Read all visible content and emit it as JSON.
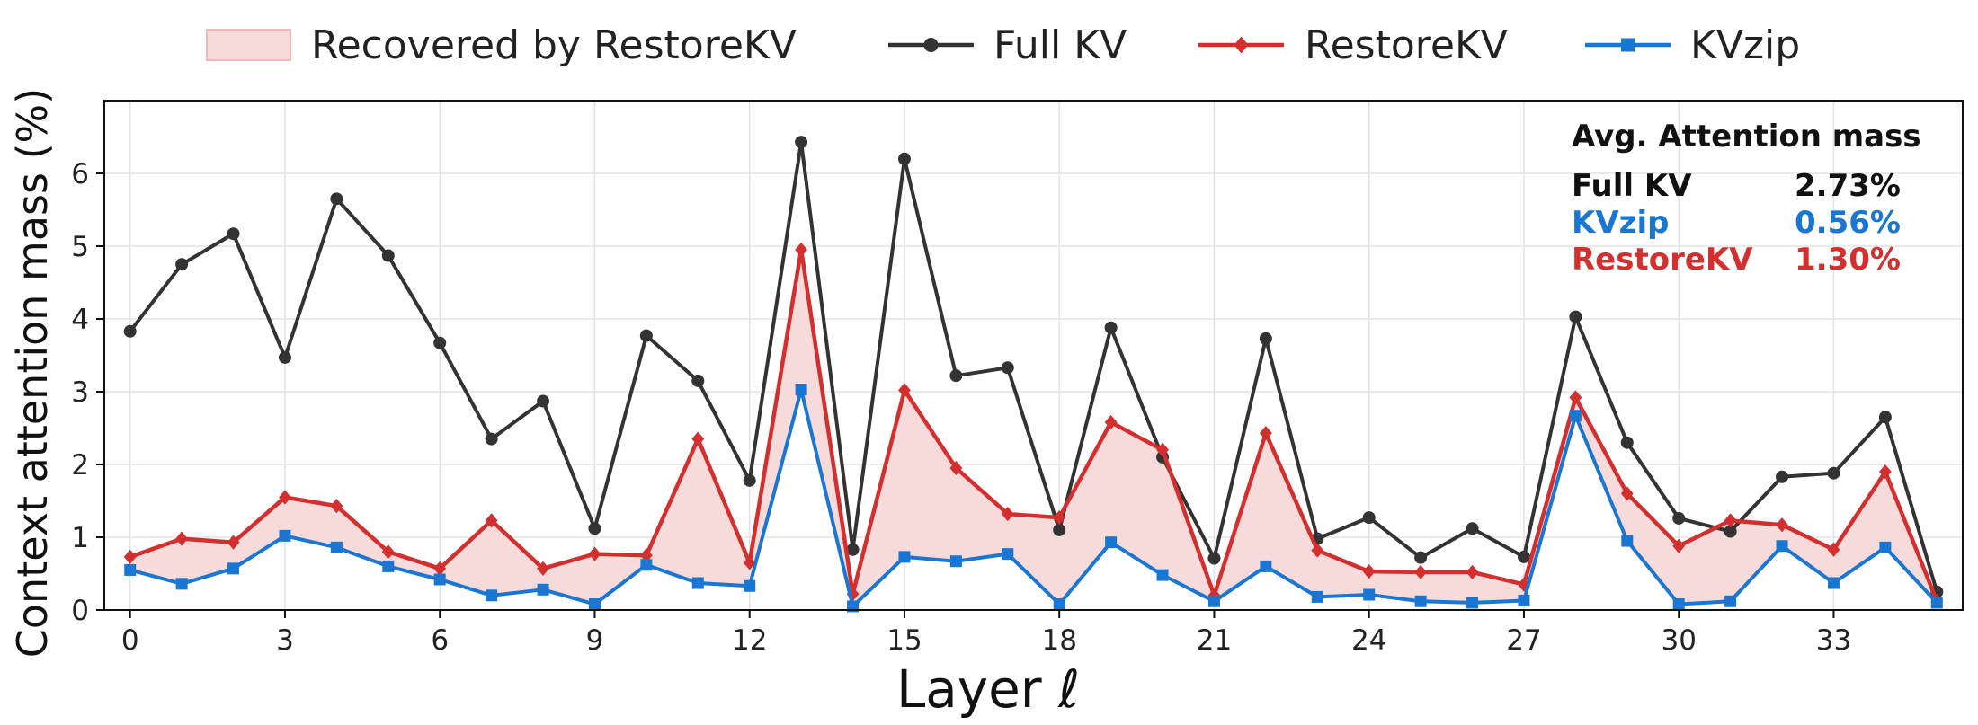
{
  "chart_data": {
    "type": "line",
    "xlabel": "Layer ℓ",
    "ylabel": "Context attention mass (%)",
    "xlim": [
      -0.5,
      35.5
    ],
    "ylim": [
      0,
      7
    ],
    "x_ticks": [
      0,
      3,
      6,
      9,
      12,
      15,
      18,
      21,
      24,
      27,
      30,
      33
    ],
    "y_ticks": [
      0,
      1,
      2,
      3,
      4,
      5,
      6
    ],
    "grid": true,
    "legend_placement": "top (above plot), horizontal",
    "x": [
      0,
      1,
      2,
      3,
      4,
      5,
      6,
      7,
      8,
      9,
      10,
      11,
      12,
      13,
      14,
      15,
      16,
      17,
      18,
      19,
      20,
      21,
      22,
      23,
      24,
      25,
      26,
      27,
      28,
      29,
      30,
      31,
      32,
      33,
      34,
      35
    ],
    "fill": {
      "name": "Recovered by RestoreKV",
      "between": [
        "KVzip",
        "RestoreKV"
      ],
      "color": "#f7dada",
      "edge_color": "#f0b8b8"
    },
    "series": [
      {
        "name": "Full KV",
        "color": "#333333",
        "marker": "circle",
        "values": [
          3.83,
          4.75,
          5.17,
          3.47,
          5.65,
          4.87,
          3.67,
          2.35,
          2.87,
          1.12,
          3.77,
          3.15,
          1.78,
          6.43,
          0.83,
          6.2,
          3.22,
          3.33,
          1.1,
          3.88,
          2.1,
          0.71,
          3.73,
          0.98,
          1.27,
          0.72,
          1.12,
          0.73,
          4.03,
          2.3,
          1.26,
          1.08,
          1.83,
          1.88,
          2.65,
          0.25
        ]
      },
      {
        "name": "RestoreKV",
        "color": "#d32f2f",
        "marker": "diamond",
        "values": [
          0.73,
          0.98,
          0.93,
          1.55,
          1.43,
          0.8,
          0.57,
          1.23,
          0.57,
          0.77,
          0.75,
          2.35,
          0.65,
          4.95,
          0.22,
          3.02,
          1.95,
          1.32,
          1.27,
          2.58,
          2.2,
          0.2,
          2.43,
          0.82,
          0.53,
          0.52,
          0.52,
          0.35,
          2.92,
          1.6,
          0.88,
          1.23,
          1.17,
          0.83,
          1.9,
          0.12
        ]
      },
      {
        "name": "KVzip",
        "color": "#1976d2",
        "marker": "square",
        "values": [
          0.55,
          0.36,
          0.57,
          1.02,
          0.86,
          0.6,
          0.42,
          0.2,
          0.28,
          0.08,
          0.62,
          0.37,
          0.33,
          3.03,
          0.05,
          0.73,
          0.67,
          0.77,
          0.08,
          0.93,
          0.48,
          0.12,
          0.6,
          0.18,
          0.21,
          0.12,
          0.1,
          0.13,
          2.67,
          0.95,
          0.08,
          0.12,
          0.88,
          0.37,
          0.86,
          0.1
        ]
      }
    ],
    "annotation": {
      "title": "Avg. Attention mass",
      "rows": [
        {
          "label": "Full KV",
          "value": "2.73%",
          "color": "#111111"
        },
        {
          "label": "KVzip",
          "value": "0.56%",
          "color": "#1976d2"
        },
        {
          "label": "RestoreKV",
          "value": "1.30%",
          "color": "#d32f2f"
        }
      ]
    }
  }
}
